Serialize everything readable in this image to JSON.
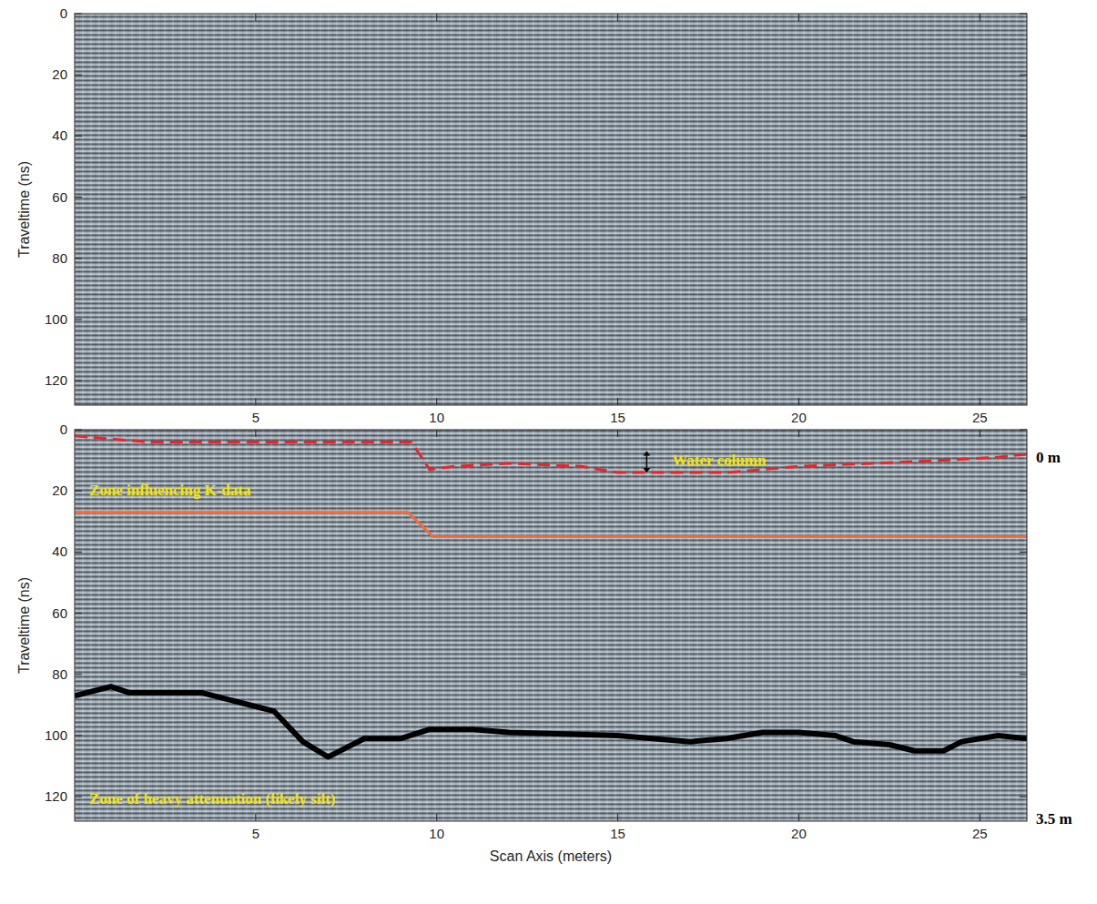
{
  "chart_data": [
    {
      "type": "radargram",
      "ylabel": "Traveltime (ns)",
      "xlim": [
        0,
        26.3
      ],
      "xticks": [
        5,
        10,
        15,
        20,
        25
      ],
      "ylim": [
        128,
        0
      ],
      "yticks": [
        0,
        20,
        40,
        60,
        80,
        100,
        120
      ]
    },
    {
      "type": "radargram",
      "xlabel": "Scan Axis (meters)",
      "ylabel": "Traveltime (ns)",
      "xlim": [
        0,
        26.3
      ],
      "xticks": [
        5,
        10,
        15,
        20,
        25
      ],
      "ylim": [
        128,
        0
      ],
      "yticks": [
        0,
        20,
        40,
        60,
        80,
        100,
        120
      ],
      "series": [
        {
          "color": "#e8262a",
          "line_style": "dashed",
          "x": [
            0,
            2,
            9.3,
            9.8,
            10.5,
            12,
            14,
            15,
            16.5,
            18,
            19,
            20,
            22,
            24,
            25.5,
            26.3
          ],
          "values": [
            2,
            4,
            4,
            13,
            12,
            11,
            12,
            14,
            14,
            14,
            13,
            12,
            11,
            10,
            9,
            8
          ]
        },
        {
          "color": "#f26a3a",
          "line_style": "solid",
          "x": [
            0,
            9.2,
            9.9,
            26.3
          ],
          "values": [
            27,
            27,
            35,
            35
          ]
        },
        {
          "color": "#000000",
          "line_style": "thick",
          "x": [
            0,
            1,
            1.5,
            3.5,
            4.5,
            5.5,
            6.3,
            7,
            7.5,
            8,
            9,
            9.8,
            10.5,
            11,
            12,
            15,
            17,
            18,
            19,
            20,
            21,
            21.5,
            22.5,
            23.2,
            24,
            24.5,
            25.5,
            26.3
          ],
          "values": [
            87,
            84,
            86,
            86,
            89,
            92,
            102,
            107,
            104,
            101,
            101,
            98,
            98,
            98,
            99,
            100,
            102,
            101,
            99,
            99,
            100,
            102,
            103,
            105,
            105,
            102,
            100,
            101
          ]
        }
      ],
      "annotations": [
        {
          "text": "Zone influencing K-data",
          "x": 0.4,
          "y": 20
        },
        {
          "text": "Water column",
          "x": 16.5,
          "y": 10,
          "arrow": [
            7,
            14
          ],
          "arrow_x": 15.8
        },
        {
          "text": "Zone of heavy attenuation (likely silt)",
          "x": 0.4,
          "y": 121
        }
      ],
      "depth_labels": [
        {
          "value": 9,
          "label": "0 m"
        },
        {
          "value": 127,
          "label": "3.5 m"
        }
      ]
    }
  ]
}
